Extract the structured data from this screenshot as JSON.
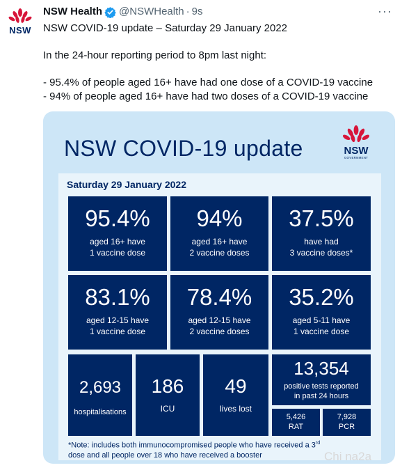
{
  "tweet": {
    "author_name": "NSW Health",
    "handle": "@NSWHealth",
    "separator": "·",
    "time": "9s",
    "more_label": "···",
    "avatar_text": "NSW",
    "lines": [
      "NSW COVID-19 update – Saturday 29 January 2022",
      "In the 24-hour reporting period to 8pm last night:",
      "- 95.4% of people aged 16+ have had one dose of a COVID-19 vaccine",
      "- 94% of people aged 16+ have had two doses of a COVID-19 vaccine"
    ]
  },
  "card": {
    "title": "NSW COVID-19 update",
    "logo_text": "NSW",
    "logo_sub": "GOVERNMENT",
    "date": "Saturday 29 January 2022",
    "tiles": [
      {
        "value": "95.4%",
        "line1": "aged 16+ have",
        "line2": "1 vaccine dose"
      },
      {
        "value": "94%",
        "line1": "aged 16+ have",
        "line2": "2 vaccine doses"
      },
      {
        "value": "37.5%",
        "line1": "have had",
        "line2": "3 vaccine doses*"
      },
      {
        "value": "83.1%",
        "line1": "aged 12-15 have",
        "line2": "1 vaccine dose"
      },
      {
        "value": "78.4%",
        "line1": "aged 12-15 have",
        "line2": "2 vaccine doses"
      },
      {
        "value": "35.2%",
        "line1": "aged 5-11 have",
        "line2": "1 vaccine dose"
      }
    ],
    "hospital": {
      "value": "2,693",
      "label": "hospitalisations"
    },
    "icu": {
      "value": "186",
      "label": "ICU"
    },
    "deaths": {
      "value": "49",
      "label": "lives lost"
    },
    "positive": {
      "value": "13,354",
      "line1": "positive tests reported",
      "line2": "in past 24 hours"
    },
    "rat": {
      "value": "5,426",
      "label": "RAT"
    },
    "pcr": {
      "value": "7,928",
      "label": "PCR"
    },
    "note_a": "*Note: includes both immunocompromised  people who have received a 3",
    "note_sup": "rd",
    "note_b": "dose and all people over 18 who have received a booster"
  },
  "watermark": "Chi na2a",
  "colors": {
    "navy": "#002664",
    "red": "#d7153a",
    "card_bg": "#cde6f7",
    "verified": "#1d9bf0"
  }
}
